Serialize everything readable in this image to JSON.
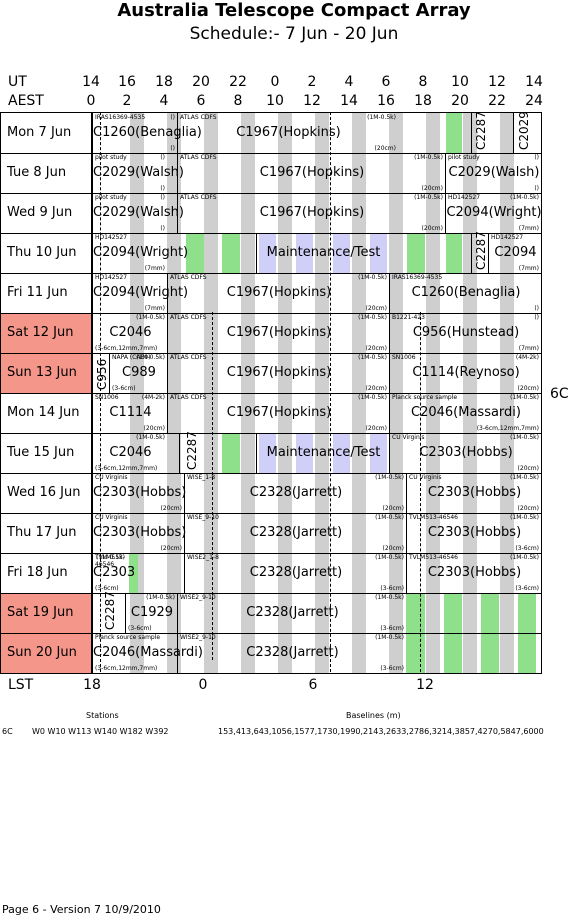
{
  "title": "Australia Telescope Compact Array",
  "subtitle": "Schedule:- 7  Jun - 20 Jun",
  "header": {
    "ut_label": "UT",
    "aest_label": "AEST",
    "ut_hours": [
      "14",
      "16",
      "18",
      "20",
      "22",
      "0",
      "2",
      "4",
      "6",
      "8",
      "10",
      "12",
      "14"
    ],
    "aest_hours": [
      "0",
      "2",
      "4",
      "6",
      "8",
      "10",
      "12",
      "14",
      "16",
      "18",
      "20",
      "22",
      "24"
    ]
  },
  "config_label": "6C",
  "colors": {
    "weekend": "#f4968a",
    "green": "#8fe08a",
    "grey": "#cfcfcf",
    "maintenance": "#cfcff8"
  },
  "days": [
    {
      "label": "Mon    7  Jun",
      "weekend": false
    },
    {
      "label": "Tue    8  Jun",
      "weekend": false
    },
    {
      "label": "Wed    9  Jun",
      "weekend": false
    },
    {
      "label": "Thu   10 Jun",
      "weekend": false
    },
    {
      "label": "Fri    11 Jun",
      "weekend": false
    },
    {
      "label": "Sat    12 Jun",
      "weekend": true
    },
    {
      "label": "Sun    13 Jun",
      "weekend": true
    },
    {
      "label": "Mon   14 Jun",
      "weekend": false
    },
    {
      "label": "Tue    15 Jun",
      "weekend": false
    },
    {
      "label": "Wed   16 Jun",
      "weekend": false
    },
    {
      "label": "Thu    17 Jun",
      "weekend": false
    },
    {
      "label": "Fri    18 Jun",
      "weekend": false
    },
    {
      "label": "Sat    19 Jun",
      "weekend": true
    },
    {
      "label": "Sun    20 Jun",
      "weekend": true
    }
  ],
  "blocks": [
    [
      {
        "top": "IRAS16369-4535",
        "tr": "()",
        "proj": "C1260(Benaglia)",
        "bl": "",
        "br": "()"
      },
      {
        "top": "ATLAS CDFS",
        "tr": "(1M-0.5k)",
        "proj": "C1967(Hopkins)",
        "bl": "",
        "br": "(20cm)"
      },
      {
        "vert": "C2287"
      },
      {
        "vert": "C2029"
      }
    ],
    [
      {
        "top": "pilot study",
        "tr": "()",
        "proj": "C2029(Walsh)",
        "bl": "",
        "br": "()"
      },
      {
        "top": "ATLAS CDFS",
        "tr": "(1M-0.5k)",
        "proj": "C1967(Hopkins)",
        "bl": "",
        "br": "(20cm)"
      },
      {
        "top": "pilot study",
        "tr": "()",
        "proj": "C2029(Walsh)",
        "bl": "",
        "br": "()"
      }
    ],
    [
      {
        "top": "pilot study",
        "tr": "()",
        "proj": "C2029(Walsh)",
        "bl": "",
        "br": "()"
      },
      {
        "top": "ATLAS CDFS",
        "tr": "(1M-0.5k)",
        "proj": "C1967(Hopkins)",
        "bl": "",
        "br": "(20cm)"
      },
      {
        "top": "HD142527",
        "tr": "(1M-0.5k)",
        "proj": "C2094(Wright)",
        "bl": "",
        "br": "(7mm)"
      }
    ],
    [
      {
        "top": "HD142527",
        "tr": "",
        "proj": "C2094(Wright)",
        "bl": "",
        "br": "(7mm)"
      },
      {
        "top": "",
        "tr": "",
        "proj": "Maintenance/Test",
        "bl": "",
        "br": ""
      },
      {
        "vert": "C2287"
      },
      {
        "top": "HD142527",
        "tr": "",
        "proj": "C2094",
        "bl": "",
        "br": "(7mm)"
      }
    ],
    [
      {
        "top": "HD142527",
        "tr": "",
        "proj": "C2094(Wright)",
        "bl": "",
        "br": "(7mm)"
      },
      {
        "top": "ATLAS CDFS",
        "tr": "(1M-0.5k)",
        "proj": "C1967(Hopkins)",
        "bl": "",
        "br": "(20cm)"
      },
      {
        "top": "IRAS16369-4535",
        "tr": "",
        "proj": "C1260(Benaglia)",
        "bl": "",
        "br": "()"
      }
    ],
    [
      {
        "top": "",
        "tr": "(1M-0.5k)",
        "proj": "C2046",
        "bl": "(3-6cm,12mm,7mm)",
        "br": ""
      },
      {
        "top": "ATLAS CDFS",
        "tr": "(1M-0.5k)",
        "proj": "C1967(Hopkins)",
        "bl": "",
        "br": "(20cm)"
      },
      {
        "top": "B1221-423",
        "tr": "()",
        "proj": "C956(Hunstead)",
        "bl": "",
        "br": "(7mm)"
      }
    ],
    [
      {
        "vert": "C956"
      },
      {
        "top": "NAPA (CAE9)",
        "tr": "(1M-0.5k)",
        "proj": "C989",
        "bl": "(3-6cm)",
        "br": ""
      },
      {
        "top": "ATLAS CDFS",
        "tr": "(1M-0.5k)",
        "proj": "C1967(Hopkins)",
        "bl": "",
        "br": "(20cm)"
      },
      {
        "top": "SN1006",
        "tr": "(4M-2k)",
        "proj": "C1114(Reynoso)",
        "bl": "",
        "br": "(20cm)"
      }
    ],
    [
      {
        "top": "SN1006",
        "tr": "(4M-2k)",
        "proj": "C1114",
        "bl": "",
        "br": "(20cm)"
      },
      {
        "top": "ATLAS CDFS",
        "tr": "(1M-0.5k)",
        "proj": "C1967(Hopkins)",
        "bl": "",
        "br": "(20cm)"
      },
      {
        "top": "Planck source sample",
        "tr": "(1M-0.5k)",
        "proj": "C2046(Massardi)",
        "bl": "",
        "br": "(3-6cm,12mm,7mm)"
      }
    ],
    [
      {
        "top": "",
        "tr": "(1M-0.5k)",
        "proj": "C2046",
        "bl": "(3-6cm,12mm,7mm)",
        "br": ""
      },
      {
        "vert": "C2287"
      },
      {
        "top": "",
        "tr": "",
        "proj": "Maintenance/Test",
        "bl": "",
        "br": ""
      },
      {
        "top": "CU Virginis",
        "tr": "(1M-0.5k)",
        "proj": "C2303(Hobbs)",
        "bl": "",
        "br": "(20cm)"
      }
    ],
    [
      {
        "top": "CU Virginis",
        "tr": "",
        "proj": "C2303(Hobbs)",
        "bl": "",
        "br": "(20cm)"
      },
      {
        "top": "WISE_1-8",
        "tr": "(1M-0.5k)",
        "proj": "C2328(Jarrett)",
        "bl": "",
        "br": "(20cm)"
      },
      {
        "top": "CU Virginis",
        "tr": "(1M-0.5k)",
        "proj": "C2303(Hobbs)",
        "bl": "",
        "br": "(20cm)"
      }
    ],
    [
      {
        "top": "CU Virginis",
        "tr": "",
        "proj": "C2303(Hobbs)",
        "bl": "",
        "br": "(20cm)"
      },
      {
        "top": "WISE_9-10",
        "tr": "(1M-0.5k)",
        "proj": "C2328(Jarrett)",
        "bl": "",
        "br": "(20cm)"
      },
      {
        "top": "TVLM513-46546",
        "tr": "(1M-0.5k)",
        "proj": "C2303(Hobbs)",
        "bl": "",
        "br": "(3-6cm)"
      }
    ],
    [
      {
        "top": "TVLM513-46546",
        "tr": "(1M-0.5k)",
        "proj": "C2303",
        "bl": "(3-6cm)",
        "br": ""
      },
      {
        "top": "WISE2_1-8",
        "tr": "(1M-0.5k)",
        "proj": "C2328(Jarrett)",
        "bl": "",
        "br": "(3-6cm)"
      },
      {
        "top": "TVLM513-46546",
        "tr": "(1M-0.5k)",
        "proj": "C2303(Hobbs)",
        "bl": "",
        "br": "(3-6cm)"
      }
    ],
    [
      {
        "vert": "C2287"
      },
      {
        "top": "",
        "tr": "(1M-0.5k)",
        "proj": "C1929",
        "bl": "(3-6cm)",
        "br": ""
      },
      {
        "top": "WISE2_9-10",
        "tr": "(1M-0.5k)",
        "proj": "C2328(Jarrett)",
        "bl": "",
        "br": "(3-6cm)"
      }
    ],
    [
      {
        "top": "Planck source sample",
        "tr": "",
        "proj": "C2046(Massardi)",
        "bl": "(3-6cm,12mm,7mm)",
        "br": ""
      },
      {
        "top": "WISE2_9-10",
        "tr": "(1M-0.5k)",
        "proj": "C2328(Jarrett)",
        "bl": "",
        "br": "(3-6cm)"
      }
    ]
  ],
  "lst": {
    "label": "LST",
    "ticks": [
      "18",
      "0",
      "6",
      "12"
    ]
  },
  "stations": {
    "heading": "Stations",
    "config": "6C",
    "value": "W0 W10 W113 W140 W182 W392"
  },
  "baselines": {
    "heading": "Baselines (m)",
    "value": "153,413,643,1056,1577,1730,1990,2143,2633,2786,3214,3857,4270,5847,6000"
  },
  "footer": "Page 6 - Version 7  10/9/2010"
}
